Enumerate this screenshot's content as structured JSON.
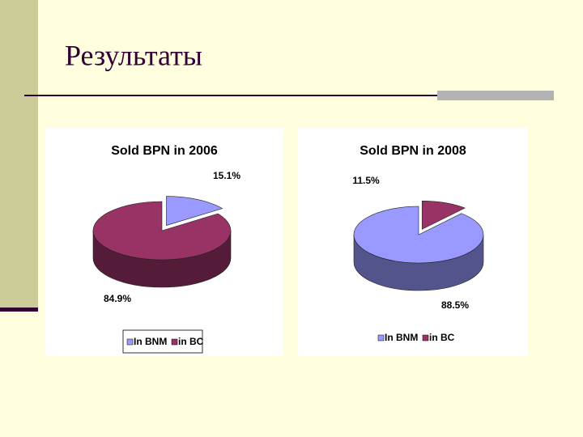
{
  "title": "Результаты",
  "chart_data": [
    {
      "type": "pie",
      "title": "Sold BPN in 2006",
      "categories": [
        "In BNM",
        "in BC"
      ],
      "values": [
        15.1,
        84.9
      ],
      "value_labels": [
        "15.1%",
        "84.9%"
      ],
      "colors": [
        "#9999ff",
        "#993366"
      ],
      "legend": "bottom"
    },
    {
      "type": "pie",
      "title": "Sold BPN in 2008",
      "categories": [
        "In BNM",
        "in BC"
      ],
      "values": [
        88.5,
        11.5
      ],
      "value_labels": [
        "88.5%",
        "11.5%"
      ],
      "colors": [
        "#9999ff",
        "#993366"
      ],
      "legend": "bottom"
    }
  ]
}
